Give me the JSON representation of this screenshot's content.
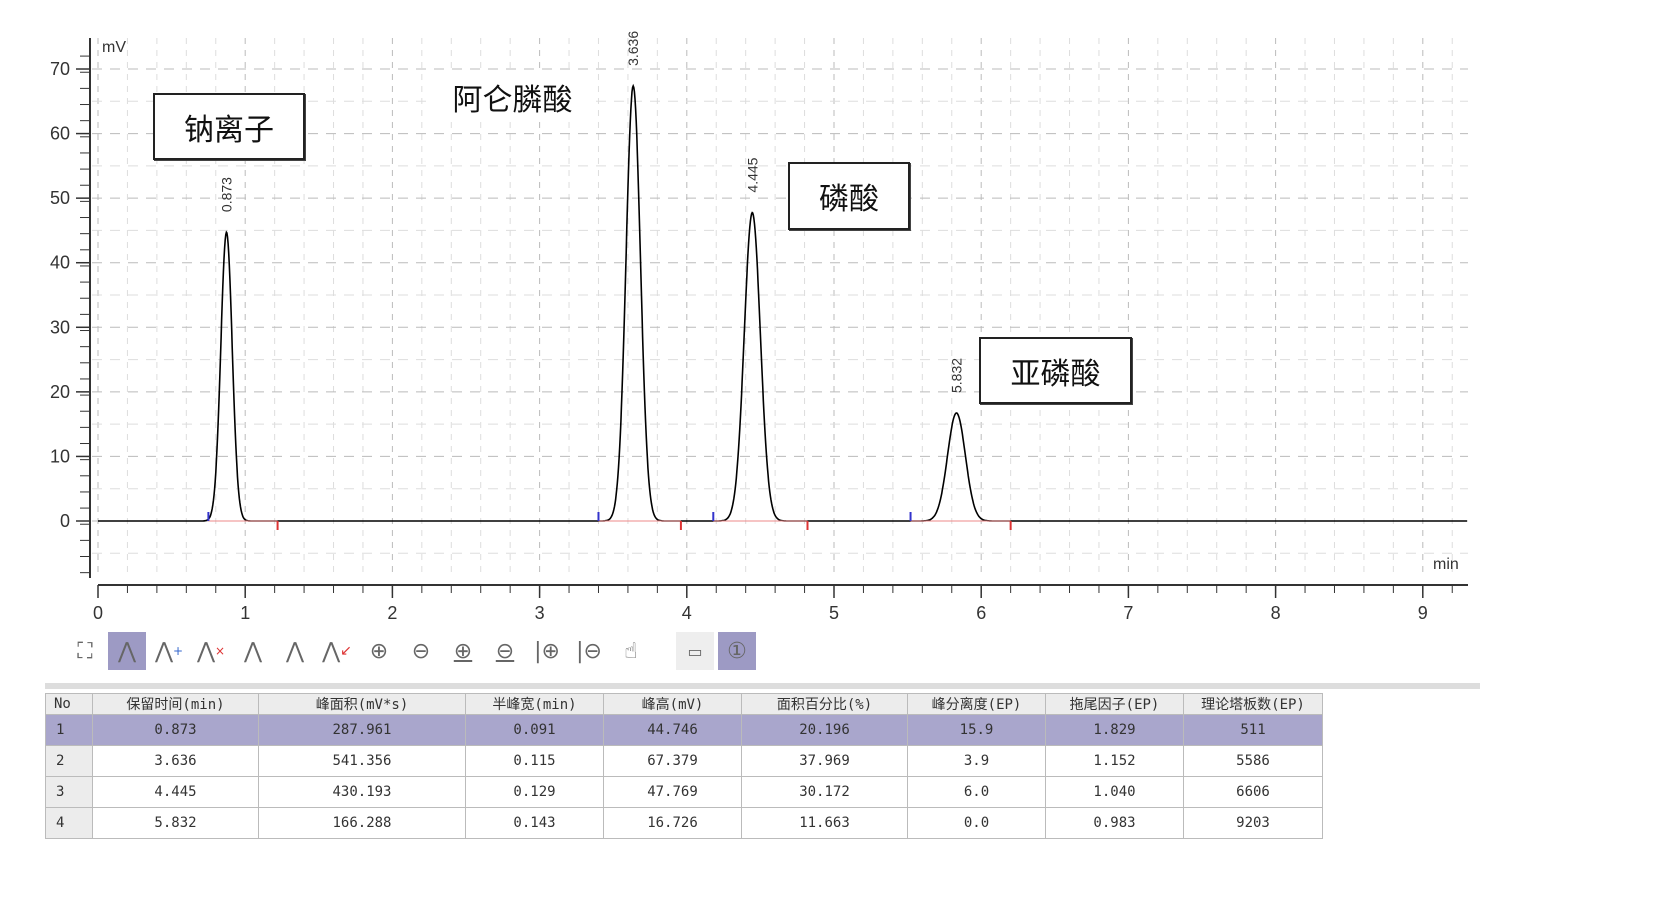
{
  "chart_data": {
    "type": "line",
    "xlabel": "min",
    "ylabel": "mV",
    "xlim": [
      0,
      9.3
    ],
    "ylim": [
      -8,
      73
    ],
    "xticks": [
      0,
      1,
      2,
      3,
      4,
      5,
      6,
      7,
      8,
      9
    ],
    "yticks": [
      0,
      10,
      20,
      30,
      40,
      50,
      60,
      70
    ],
    "grid": true,
    "line_color": "#000000",
    "peaks": [
      {
        "rt": 0.873,
        "label": "0.873",
        "height": 44.746,
        "half_width": 0.091,
        "start": 0.75,
        "end": 1.22
      },
      {
        "rt": 3.636,
        "label": "3.636",
        "height": 67.379,
        "half_width": 0.115,
        "start": 3.4,
        "end": 3.96
      },
      {
        "rt": 4.445,
        "label": "4.445",
        "height": 47.769,
        "half_width": 0.129,
        "start": 4.18,
        "end": 4.82
      },
      {
        "rt": 5.832,
        "label": "5.832",
        "height": 16.726,
        "half_width": 0.143,
        "start": 5.52,
        "end": 6.2
      }
    ],
    "annotations": [
      "钠离子",
      "阿仑膦酸",
      "磷酸",
      "亚磷酸"
    ]
  },
  "toolbar": {
    "icons": [
      "fit-view-icon",
      "peak-icon",
      "add-peak-icon",
      "delete-peak-icon",
      "baseline-icon",
      "peak-baseline-icon",
      "split-peak-icon",
      "zoom-in-icon",
      "zoom-out-icon",
      "zoom-in-y-icon",
      "zoom-out-y-icon",
      "zoom-in-x-icon",
      "zoom-out-x-icon",
      "pan-hand-icon",
      "ruler-icon",
      "info-circle-icon"
    ]
  },
  "table": {
    "headers": [
      "No",
      "保留时间(min)",
      "峰面积(mV*s)",
      "半峰宽(min)",
      "峰高(mV)",
      "面积百分比(%)",
      "峰分离度(EP)",
      "拖尾因子(EP)",
      "理论塔板数(EP)"
    ],
    "rows": [
      [
        "1",
        "0.873",
        "287.961",
        "0.091",
        "44.746",
        "20.196",
        "15.9",
        "1.829",
        "511"
      ],
      [
        "2",
        "3.636",
        "541.356",
        "0.115",
        "67.379",
        "37.969",
        "3.9",
        "1.152",
        "5586"
      ],
      [
        "3",
        "4.445",
        "430.193",
        "0.129",
        "47.769",
        "30.172",
        "6.0",
        "1.040",
        "6606"
      ],
      [
        "4",
        "5.832",
        "166.288",
        "0.143",
        "16.726",
        "11.663",
        "0.0",
        "0.983",
        "9203"
      ]
    ],
    "selected_row": 0
  }
}
